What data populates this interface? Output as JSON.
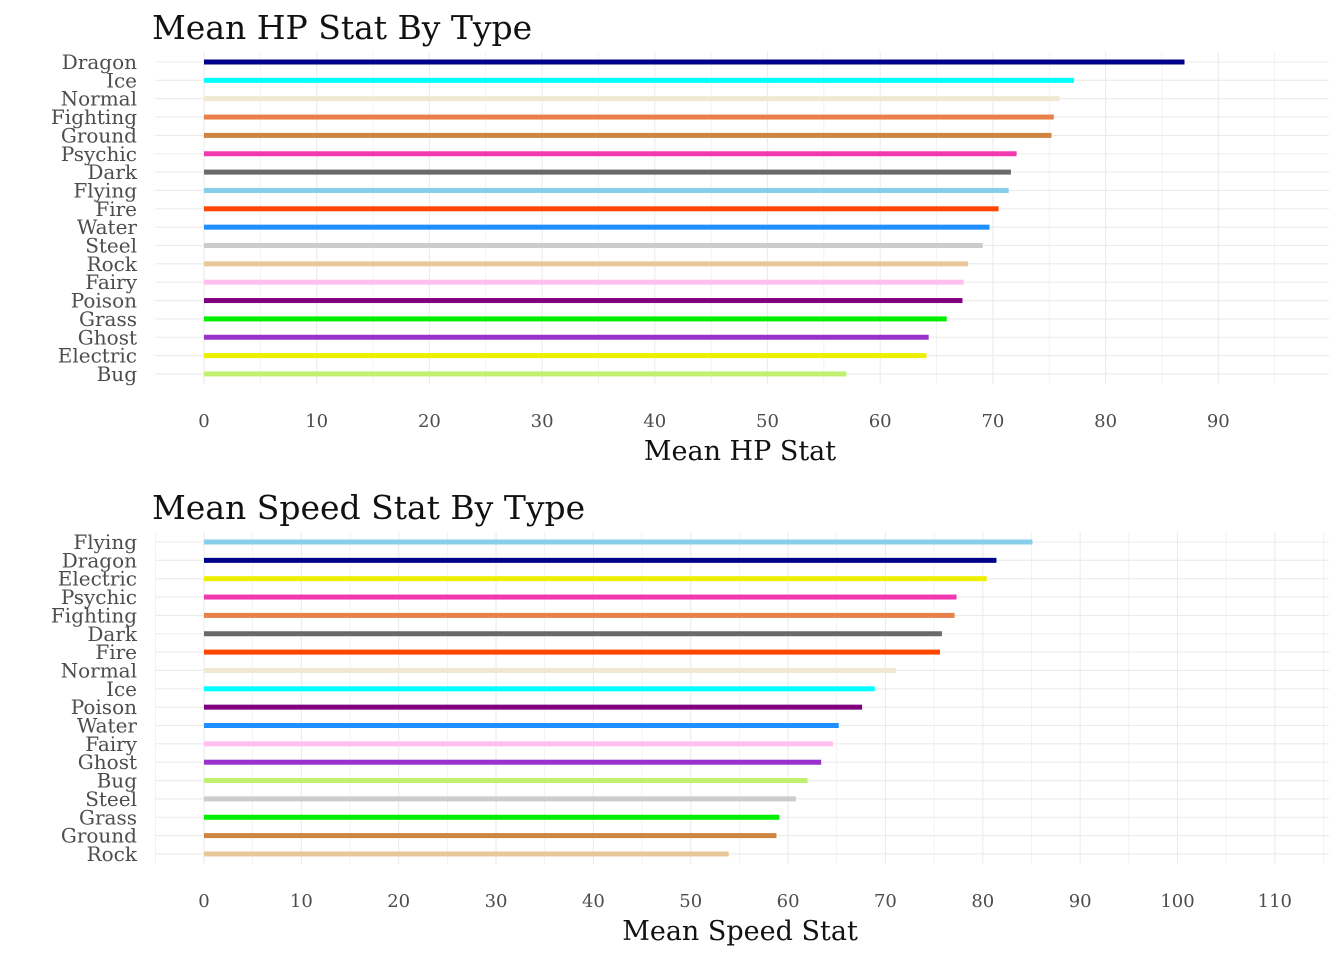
{
  "colors": {
    "grid": "#ebebeb",
    "tick_text": "#4d4d4d",
    "title_text": "#111111"
  },
  "chart_data": [
    {
      "type": "bar",
      "orientation": "horizontal",
      "title": "Mean HP Stat By Type",
      "xlabel": "Mean HP Stat",
      "ylabel": "",
      "xlim": [
        0,
        99
      ],
      "xticks": [
        0,
        10,
        20,
        30,
        40,
        50,
        60,
        70,
        80,
        90
      ],
      "grid": true,
      "legend": "none",
      "categories": [
        "Dragon",
        "Ice",
        "Normal",
        "Fighting",
        "Ground",
        "Psychic",
        "Dark",
        "Flying",
        "Fire",
        "Water",
        "Steel",
        "Rock",
        "Fairy",
        "Poison",
        "Grass",
        "Ghost",
        "Electric",
        "Bug"
      ],
      "values": [
        87.0,
        77.2,
        75.9,
        75.4,
        75.2,
        72.1,
        71.6,
        71.4,
        70.5,
        69.7,
        69.1,
        67.8,
        67.4,
        67.3,
        65.9,
        64.3,
        64.1,
        57.0
      ],
      "colors": [
        "#00008b",
        "#00ffff",
        "#f0e8d0",
        "#e8804a",
        "#cd853f",
        "#f038b0",
        "#696969",
        "#87ceeb",
        "#ff4500",
        "#1e8fff",
        "#cccccc",
        "#e8c898",
        "#ffc0f0",
        "#800080",
        "#00ee00",
        "#9932cc",
        "#eeee00",
        "#c0f070"
      ]
    },
    {
      "type": "bar",
      "orientation": "horizontal",
      "title": "Mean Speed Stat By Type",
      "xlabel": "Mean Speed Stat",
      "ylabel": "",
      "xlim": [
        0,
        115
      ],
      "xticks": [
        0,
        10,
        20,
        30,
        40,
        50,
        60,
        70,
        80,
        90,
        100,
        110
      ],
      "grid": true,
      "legend": "none",
      "categories": [
        "Flying",
        "Dragon",
        "Electric",
        "Psychic",
        "Fighting",
        "Dark",
        "Fire",
        "Normal",
        "Ice",
        "Poison",
        "Water",
        "Fairy",
        "Ghost",
        "Bug",
        "Steel",
        "Grass",
        "Ground",
        "Rock"
      ],
      "values": [
        85.1,
        81.4,
        80.4,
        77.3,
        77.1,
        75.8,
        75.6,
        71.1,
        68.9,
        67.6,
        65.2,
        64.6,
        63.4,
        62.0,
        60.8,
        59.1,
        58.8,
        53.9
      ],
      "colors": [
        "#87ceeb",
        "#00008b",
        "#eeee00",
        "#f038b0",
        "#e8804a",
        "#696969",
        "#ff4500",
        "#f0e8d0",
        "#00ffff",
        "#800080",
        "#1e8fff",
        "#ffc0f0",
        "#9932cc",
        "#c0f070",
        "#cccccc",
        "#00ee00",
        "#cd853f",
        "#e8c898"
      ]
    }
  ]
}
